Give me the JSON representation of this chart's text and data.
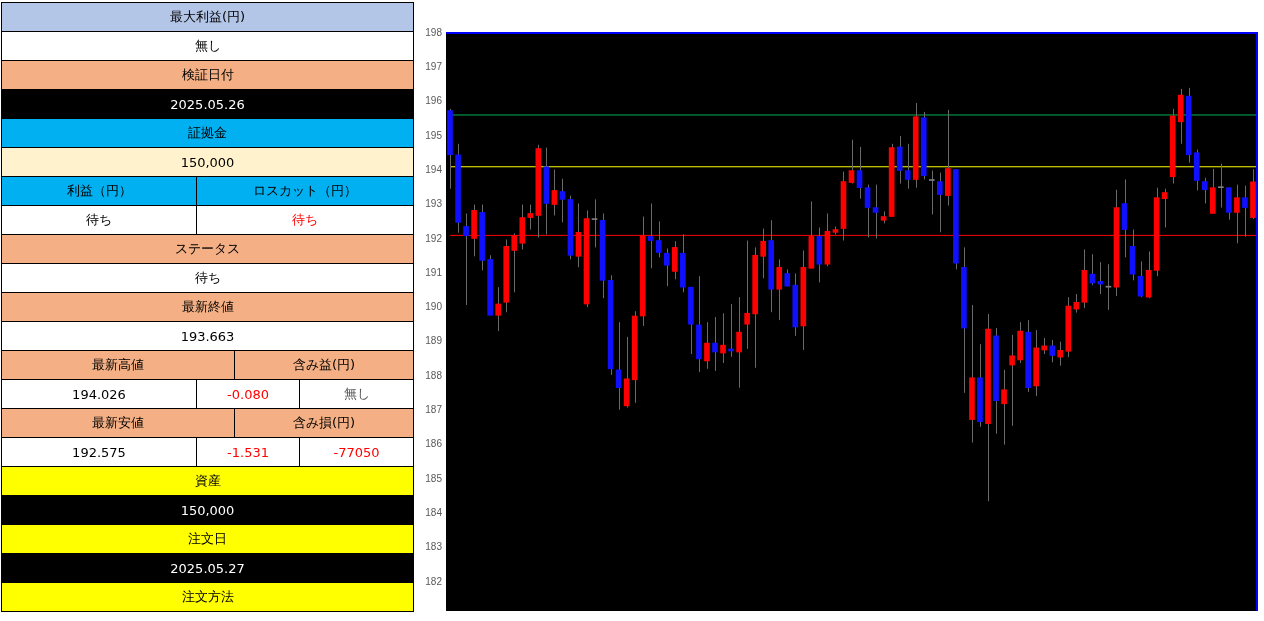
{
  "chart_data": {
    "type": "candlestick",
    "annotations": [
      "最大利益(円)",
      "無し",
      "検証日付",
      "2025.05.26",
      "証拠金",
      "150,000",
      "利益（円）",
      "ロスカット（円）",
      "待ち",
      "待ち",
      "ステータス",
      "待ち",
      "最新終値",
      "193.663",
      "最新高値",
      "含み益(円)",
      "194.026",
      "-0.080",
      "無し",
      "最新安値",
      "含み損(円)",
      "192.575",
      "-1.531",
      "-77050",
      "資産",
      "150,000",
      "注文日",
      "2025.05.27",
      "注文方法"
    ],
    "tick_labels": "y",
    "ylim": [
      181.15,
      198
    ],
    "yticks": [
      182,
      183,
      184,
      185,
      186,
      187,
      188,
      189,
      190,
      191,
      192,
      193,
      194,
      195,
      196,
      197,
      198
    ],
    "categories": [
      null,
      null,
      null,
      null,
      null,
      null,
      null,
      null,
      null,
      null,
      null,
      null,
      null,
      null,
      null,
      null,
      null,
      null,
      null,
      null,
      null,
      null,
      null,
      null,
      null,
      null,
      null,
      null,
      null,
      null,
      null,
      null,
      null,
      null,
      null,
      null,
      null,
      null,
      null,
      null,
      null,
      null,
      null,
      null,
      null,
      null,
      null,
      null,
      null,
      null,
      null,
      null,
      null,
      null,
      null,
      null,
      null,
      null,
      null,
      null,
      null,
      null,
      null,
      null,
      null,
      null,
      null,
      null,
      null,
      null,
      null,
      null,
      null,
      null,
      null,
      null,
      null,
      null,
      null,
      null,
      null,
      null,
      null,
      null,
      null,
      null,
      null,
      null,
      null,
      null,
      null,
      null,
      null,
      null,
      null,
      null,
      null,
      null,
      null,
      null,
      null
    ],
    "ohlc": [
      [
        195.74,
        195.79,
        193.46,
        194.45
      ],
      [
        194.45,
        194.77,
        192.18,
        192.48
      ],
      [
        192.36,
        192.74,
        190.07,
        192.09
      ],
      [
        192.01,
        193.0,
        191.49,
        192.83
      ],
      [
        192.77,
        193.0,
        191.08,
        191.37
      ],
      [
        191.4,
        191.52,
        189.77,
        189.77
      ],
      [
        189.77,
        190.59,
        189.31,
        190.1
      ],
      [
        190.15,
        191.98,
        189.86,
        191.78
      ],
      [
        191.66,
        192.16,
        190.44,
        192.1
      ],
      [
        191.87,
        193.0,
        191.69,
        192.62
      ],
      [
        192.62,
        193.0,
        192.27,
        192.74
      ],
      [
        192.68,
        194.74,
        192.04,
        194.63
      ],
      [
        194.1,
        194.66,
        192.13,
        193.03
      ],
      [
        193.0,
        194.02,
        192.68,
        193.41
      ],
      [
        193.38,
        193.75,
        192.48,
        193.15
      ],
      [
        193.15,
        193.26,
        191.4,
        191.52
      ],
      [
        191.49,
        193.03,
        191.17,
        192.19
      ],
      [
        190.1,
        192.83,
        190.01,
        192.59
      ],
      [
        192.56,
        193.15,
        191.75,
        192.56
      ],
      [
        192.54,
        192.74,
        190.27,
        190.79
      ],
      [
        190.79,
        190.94,
        188.03,
        188.21
      ],
      [
        188.18,
        189.57,
        187.02,
        187.66
      ],
      [
        187.13,
        189.14,
        187.08,
        187.92
      ],
      [
        187.89,
        189.89,
        187.22,
        189.75
      ],
      [
        189.75,
        192.65,
        189.46,
        192.1
      ],
      [
        192.07,
        193.03,
        191.14,
        191.95
      ],
      [
        191.95,
        192.51,
        191.46,
        191.6
      ],
      [
        191.58,
        191.72,
        190.62,
        191.23
      ],
      [
        191.05,
        191.93,
        190.82,
        191.75
      ],
      [
        191.58,
        192.13,
        190.44,
        190.59
      ],
      [
        190.59,
        190.59,
        188.64,
        189.51
      ],
      [
        189.49,
        190.91,
        188.12,
        188.5
      ],
      [
        188.44,
        189.57,
        188.21,
        188.96
      ],
      [
        188.96,
        189.72,
        188.15,
        188.7
      ],
      [
        188.67,
        189.83,
        188.38,
        188.9
      ],
      [
        188.79,
        190.1,
        188.56,
        188.73
      ],
      [
        188.7,
        190.3,
        187.66,
        189.28
      ],
      [
        189.51,
        191.95,
        188.79,
        189.83
      ],
      [
        189.81,
        191.75,
        188.24,
        191.52
      ],
      [
        191.49,
        192.3,
        190.85,
        191.93
      ],
      [
        191.95,
        192.54,
        189.86,
        190.53
      ],
      [
        190.53,
        191.4,
        189.63,
        191.17
      ],
      [
        190.99,
        191.11,
        190.62,
        190.62
      ],
      [
        190.65,
        190.99,
        189.17,
        189.43
      ],
      [
        189.46,
        191.66,
        188.76,
        191.17
      ],
      [
        191.14,
        193.09,
        191.14,
        192.07
      ],
      [
        192.07,
        192.33,
        190.73,
        191.26
      ],
      [
        191.26,
        192.74,
        191.2,
        192.22
      ],
      [
        192.19,
        192.36,
        192.13,
        192.27
      ],
      [
        192.3,
        193.96,
        191.95,
        193.67
      ],
      [
        193.64,
        194.89,
        193.61,
        193.99
      ],
      [
        193.99,
        194.68,
        193.17,
        193.49
      ],
      [
        193.49,
        193.58,
        192.04,
        192.91
      ],
      [
        192.91,
        193.58,
        192.01,
        192.77
      ],
      [
        192.54,
        192.8,
        192.45,
        192.65
      ],
      [
        192.65,
        194.77,
        192.65,
        194.66
      ],
      [
        194.68,
        195.0,
        193.61,
        193.99
      ],
      [
        193.99,
        194.77,
        193.46,
        193.73
      ],
      [
        193.73,
        195.96,
        193.49,
        195.56
      ],
      [
        195.53,
        195.7,
        193.73,
        193.84
      ],
      [
        193.7,
        193.99,
        192.71,
        193.7
      ],
      [
        193.67,
        193.93,
        192.19,
        193.29
      ],
      [
        193.26,
        195.76,
        192.97,
        194.05
      ],
      [
        194.02,
        194.02,
        191.11,
        191.29
      ],
      [
        191.17,
        191.75,
        187.51,
        189.4
      ],
      [
        186.73,
        190.07,
        186.06,
        187.95
      ],
      [
        187.95,
        188.93,
        186.52,
        186.67
      ],
      [
        186.61,
        189.81,
        184.35,
        189.37
      ],
      [
        189.17,
        189.4,
        186.32,
        187.28
      ],
      [
        187.19,
        188.18,
        186.0,
        187.6
      ],
      [
        188.32,
        189.2,
        186.55,
        188.59
      ],
      [
        188.47,
        189.57,
        188.38,
        189.31
      ],
      [
        189.28,
        189.63,
        187.54,
        187.66
      ],
      [
        187.71,
        189.34,
        187.42,
        188.82
      ],
      [
        188.76,
        189.11,
        188.64,
        188.88
      ],
      [
        188.88,
        189.05,
        188.4,
        188.6
      ],
      [
        188.55,
        189.0,
        188.3,
        188.75
      ],
      [
        188.72,
        190.3,
        188.55,
        190.04
      ],
      [
        189.95,
        190.39,
        189.85,
        190.15
      ],
      [
        190.15,
        191.69,
        189.98,
        191.08
      ],
      [
        190.97,
        191.55,
        190.65,
        190.71
      ],
      [
        190.76,
        191.32,
        190.39,
        190.68
      ],
      [
        190.59,
        191.26,
        189.93,
        190.59
      ],
      [
        190.59,
        193.43,
        190.33,
        192.91
      ],
      [
        193.03,
        193.73,
        191.46,
        192.27
      ],
      [
        191.78,
        192.27,
        190.79,
        190.97
      ],
      [
        190.91,
        191.34,
        190.3,
        190.33
      ],
      [
        190.3,
        191.63,
        190.27,
        191.08
      ],
      [
        191.08,
        193.49,
        190.91,
        193.2
      ],
      [
        193.17,
        193.46,
        192.33,
        193.35
      ],
      [
        193.81,
        195.79,
        193.61,
        195.58
      ],
      [
        195.41,
        196.37,
        194.77,
        196.19
      ],
      [
        196.16,
        196.4,
        194.22,
        194.45
      ],
      [
        194.51,
        194.6,
        193.41,
        193.7
      ],
      [
        193.67,
        193.78,
        193.03,
        193.43
      ],
      [
        192.74,
        194.04,
        192.74,
        193.49
      ],
      [
        193.49,
        194.19,
        192.91,
        193.49
      ],
      [
        193.49,
        193.49,
        192.56,
        192.77
      ],
      [
        192.77,
        193.58,
        191.87,
        193.2
      ],
      [
        193.2,
        193.55,
        192.06,
        192.91
      ],
      [
        192.62,
        194.03,
        192.58,
        193.66
      ]
    ],
    "colors": [
      "#1010ff",
      "#1010ff",
      "#1010ff",
      "#ff0000",
      "#1010ff",
      "#1010ff",
      "#ff0000",
      "#ff0000",
      "#ff0000",
      "#ff0000",
      "#ff0000",
      "#ff0000",
      "#1010ff",
      "#ff0000",
      "#1010ff",
      "#1010ff",
      "#ff0000",
      "#ff0000",
      "#808080",
      "#1010ff",
      "#1010ff",
      "#1010ff",
      "#ff0000",
      "#ff0000",
      "#ff0000",
      "#1010ff",
      "#1010ff",
      "#1010ff",
      "#ff0000",
      "#1010ff",
      "#1010ff",
      "#1010ff",
      "#ff0000",
      "#1010ff",
      "#ff0000",
      "#1010ff",
      "#ff0000",
      "#ff0000",
      "#ff0000",
      "#ff0000",
      "#1010ff",
      "#ff0000",
      "#1010ff",
      "#1010ff",
      "#ff0000",
      "#ff0000",
      "#1010ff",
      "#ff0000",
      "#ff0000",
      "#ff0000",
      "#ff0000",
      "#1010ff",
      "#1010ff",
      "#1010ff",
      "#ff0000",
      "#ff0000",
      "#1010ff",
      "#1010ff",
      "#ff0000",
      "#1010ff",
      "#808080",
      "#1010ff",
      "#ff0000",
      "#1010ff",
      "#1010ff",
      "#ff0000",
      "#1010ff",
      "#ff0000",
      "#1010ff",
      "#ff0000",
      "#ff0000",
      "#ff0000",
      "#1010ff",
      "#ff0000",
      "#ff0000",
      "#1010ff",
      "#ff0000",
      "#ff0000",
      "#ff0000",
      "#ff0000",
      "#1010ff",
      "#1010ff",
      "#808080",
      "#ff0000",
      "#1010ff",
      "#1010ff",
      "#1010ff",
      "#ff0000",
      "#ff0000",
      "#ff0000",
      "#ff0000",
      "#ff0000",
      "#1010ff",
      "#1010ff",
      "#1010ff",
      "#ff0000",
      "#808080",
      "#1010ff",
      "#ff0000",
      "#1010ff",
      "#ff0000"
    ],
    "ref_lines": [
      {
        "axis": "y",
        "value": 195.61,
        "color": "#00b050"
      },
      {
        "axis": "y",
        "value": 194.1,
        "color": "#ffff00"
      },
      {
        "axis": "y",
        "value": 192.1,
        "color": "#ff0000"
      }
    ]
  }
}
